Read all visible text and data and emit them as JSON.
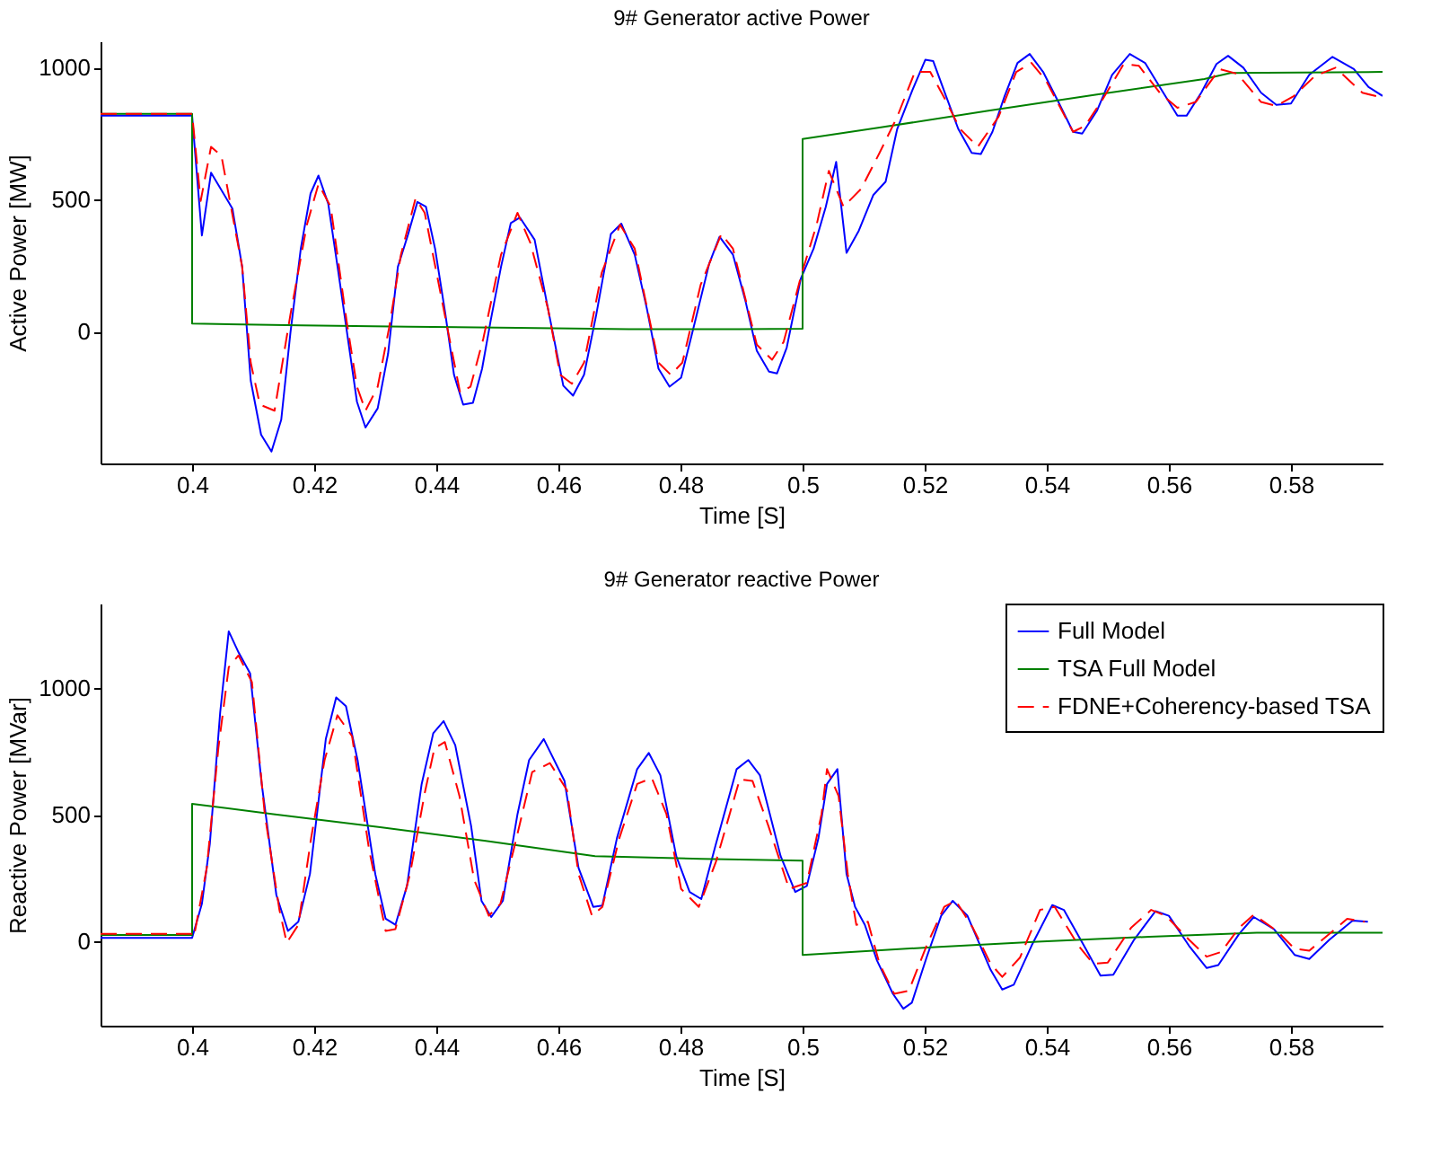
{
  "chart_data": [
    {
      "type": "line",
      "title": "9# Generator active Power",
      "xlabel": "Time [S]",
      "ylabel": "Active Power [MW]",
      "xlim": [
        0.385,
        0.595
      ],
      "ylim": [
        -500,
        1100
      ],
      "xticks": [
        0.4,
        0.42,
        0.44,
        0.46,
        0.48,
        0.5,
        0.52,
        0.54,
        0.56,
        0.58
      ],
      "yticks": [
        0,
        500,
        1000
      ],
      "grid": false,
      "legend": false,
      "series": [
        {
          "color": "#0000ff",
          "line_style": "solid",
          "x": [
            0.385,
            0.4,
            0.4016,
            0.4031,
            0.4066,
            0.4082,
            0.4096,
            0.4113,
            0.413,
            0.4146,
            0.4161,
            0.4178,
            0.4194,
            0.4207,
            0.4223,
            0.4239,
            0.427,
            0.4284,
            0.4304,
            0.4321,
            0.4337,
            0.4354,
            0.4369,
            0.4383,
            0.4398,
            0.4415,
            0.4429,
            0.4444,
            0.446,
            0.4475,
            0.4489,
            0.4506,
            0.4522,
            0.4537,
            0.4561,
            0.4583,
            0.4608,
            0.4624,
            0.4642,
            0.4662,
            0.4686,
            0.4703,
            0.4725,
            0.4745,
            0.4764,
            0.4782,
            0.4801,
            0.4823,
            0.4847,
            0.4864,
            0.4886,
            0.4906,
            0.4925,
            0.4945,
            0.4958,
            0.4974,
            0.4997,
            0.5018,
            0.5038,
            0.5055,
            0.5072,
            0.5092,
            0.5116,
            0.5136,
            0.5155,
            0.518,
            0.5201,
            0.5214,
            0.5233,
            0.5255,
            0.5277,
            0.5292,
            0.5311,
            0.5331,
            0.5352,
            0.5372,
            0.5394,
            0.5419,
            0.5443,
            0.5458,
            0.5482,
            0.5507,
            0.5536,
            0.5561,
            0.5585,
            0.5614,
            0.5629,
            0.5653,
            0.5678,
            0.5697,
            0.5722,
            0.5751,
            0.5776,
            0.58,
            0.583,
            0.5868,
            0.5903,
            0.5927,
            0.595
          ],
          "values": [
            818,
            818,
            364,
            602,
            466,
            245,
            -186,
            -391,
            -455,
            -334,
            -5,
            314,
            523,
            591,
            484,
            234,
            -266,
            -364,
            -291,
            -84,
            245,
            370,
            491,
            473,
            314,
            64,
            -164,
            -277,
            -270,
            -141,
            41,
            245,
            411,
            432,
            348,
            86,
            -205,
            -243,
            -164,
            64,
            370,
            409,
            291,
            86,
            -141,
            -209,
            -175,
            30,
            257,
            359,
            291,
            120,
            -73,
            -152,
            -159,
            -61,
            200,
            314,
            473,
            643,
            298,
            382,
            518,
            568,
            768,
            916,
            1030,
            1025,
            905,
            768,
            677,
            673,
            757,
            893,
            1018,
            1052,
            984,
            870,
            757,
            750,
            836,
            973,
            1052,
            1018,
            927,
            818,
            818,
            905,
            1014,
            1045,
            1000,
            905,
            859,
            864,
            973,
            1041,
            995,
            927,
            893
          ]
        },
        {
          "color": "#008000",
          "line_style": "solid",
          "x": [
            0.385,
            0.4,
            0.4,
            0.4178,
            0.4354,
            0.4532,
            0.4715,
            0.4896,
            0.5,
            0.5,
            0.5126,
            0.5302,
            0.5482,
            0.5658,
            0.5701,
            0.595
          ],
          "values": [
            825,
            825,
            30,
            23,
            18,
            14,
            9,
            9,
            11,
            730,
            773,
            836,
            898,
            957,
            980,
            984
          ]
        },
        {
          "color": "#ff0000",
          "line_style": "dashed",
          "x": [
            0.385,
            0.4,
            0.4014,
            0.4031,
            0.4048,
            0.4082,
            0.4096,
            0.4111,
            0.4135,
            0.4161,
            0.4188,
            0.4207,
            0.4227,
            0.4253,
            0.427,
            0.4284,
            0.4304,
            0.4323,
            0.4342,
            0.4366,
            0.4381,
            0.441,
            0.4439,
            0.4456,
            0.4477,
            0.4506,
            0.4533,
            0.4554,
            0.4583,
            0.4603,
            0.4622,
            0.4642,
            0.4671,
            0.4701,
            0.4725,
            0.4764,
            0.4784,
            0.4803,
            0.4833,
            0.4867,
            0.4886,
            0.4925,
            0.495,
            0.4969,
            0.4999,
            0.5023,
            0.5043,
            0.5067,
            0.5096,
            0.5126,
            0.5155,
            0.5184,
            0.5209,
            0.5233,
            0.5258,
            0.5287,
            0.5321,
            0.535,
            0.5375,
            0.5399,
            0.5443,
            0.5463,
            0.5492,
            0.5526,
            0.5551,
            0.5585,
            0.5614,
            0.5644,
            0.5683,
            0.5712,
            0.5751,
            0.5776,
            0.5805,
            0.5839,
            0.5873,
            0.5917,
            0.595
          ],
          "values": [
            825,
            825,
            495,
            700,
            666,
            245,
            -118,
            -277,
            -300,
            64,
            405,
            559,
            473,
            41,
            -209,
            -300,
            -209,
            18,
            291,
            505,
            450,
            109,
            -232,
            -209,
            -27,
            291,
            450,
            336,
            86,
            -164,
            -198,
            -118,
            223,
            405,
            314,
            -118,
            -164,
            -118,
            177,
            370,
            314,
            -50,
            -107,
            -39,
            223,
            405,
            609,
            473,
            541,
            677,
            814,
            984,
            984,
            882,
            768,
            700,
            814,
            984,
            1018,
            950,
            757,
            780,
            882,
            1014,
            1007,
            905,
            848,
            870,
            995,
            977,
            870,
            855,
            893,
            968,
            1000,
            905,
            886
          ]
        }
      ]
    },
    {
      "type": "line",
      "title": "9# Generator reactive Power",
      "xlabel": "Time [S]",
      "ylabel": "Reactive Power [MVar]",
      "xlim": [
        0.385,
        0.595
      ],
      "ylim": [
        -335,
        1335
      ],
      "xticks": [
        0.4,
        0.42,
        0.44,
        0.46,
        0.48,
        0.5,
        0.52,
        0.54,
        0.56,
        0.58
      ],
      "yticks": [
        0,
        500,
        1000
      ],
      "grid": false,
      "legend": "top right",
      "series": [
        {
          "name": "Full Model",
          "color": "#0000ff",
          "line_style": "solid",
          "x": [
            0.385,
            0.4,
            0.4016,
            0.4029,
            0.4046,
            0.406,
            0.4076,
            0.4095,
            0.4114,
            0.4138,
            0.4157,
            0.4174,
            0.4193,
            0.4219,
            0.4236,
            0.4252,
            0.4271,
            0.43,
            0.4317,
            0.4333,
            0.4352,
            0.4376,
            0.4395,
            0.4412,
            0.4431,
            0.4457,
            0.4474,
            0.449,
            0.4509,
            0.4533,
            0.4552,
            0.4576,
            0.461,
            0.4633,
            0.4657,
            0.4672,
            0.4696,
            0.4729,
            0.4748,
            0.4767,
            0.4793,
            0.4815,
            0.4834,
            0.4858,
            0.4892,
            0.4911,
            0.493,
            0.4964,
            0.4988,
            0.5007,
            0.5026,
            0.504,
            0.5057,
            0.5072,
            0.5086,
            0.5102,
            0.5122,
            0.5148,
            0.5165,
            0.5179,
            0.5203,
            0.5227,
            0.5246,
            0.527,
            0.5308,
            0.5327,
            0.5346,
            0.5375,
            0.5409,
            0.5428,
            0.5461,
            0.5488,
            0.5509,
            0.5543,
            0.5578,
            0.56,
            0.5633,
            0.5662,
            0.5681,
            0.5715,
            0.5739,
            0.5772,
            0.5806,
            0.583,
            0.5863,
            0.5901,
            0.5926
          ],
          "values": [
            12,
            12,
            147,
            384,
            905,
            1225,
            1142,
            1059,
            621,
            182,
            40,
            76,
            265,
            799,
            964,
            929,
            716,
            265,
            88,
            64,
            218,
            621,
            822,
            870,
            775,
            455,
            159,
            95,
            159,
            502,
            716,
            799,
            633,
            289,
            135,
            140,
            408,
            680,
            744,
            656,
            336,
            194,
            166,
            384,
            680,
            716,
            656,
            336,
            194,
            218,
            408,
            621,
            680,
            265,
            135,
            64,
            -78,
            -209,
            -268,
            -244,
            -66,
            100,
            159,
            100,
            -114,
            -192,
            -173,
            -19,
            142,
            123,
            -19,
            -137,
            -133,
            5,
            118,
            100,
            -19,
            -107,
            -95,
            28,
            95,
            47,
            -55,
            -71,
            5,
            81,
            76
          ]
        },
        {
          "name": "TSA Full Model",
          "color": "#008000",
          "line_style": "solid",
          "x": [
            0.385,
            0.4,
            0.4,
            0.4133,
            0.4308,
            0.4481,
            0.466,
            0.4834,
            0.5,
            0.5,
            0.5217,
            0.5392,
            0.5568,
            0.5744,
            0.595
          ],
          "values": [
            24,
            24,
            543,
            502,
            450,
            396,
            336,
            325,
            318,
            -55,
            -24,
            -2,
            17,
            33,
            33
          ]
        },
        {
          "name": "FDNE+Coherency-based TSA",
          "color": "#ff0000",
          "line_style": "dashed",
          "x": [
            0.385,
            0.4,
            0.4003,
            0.4024,
            0.4043,
            0.406,
            0.4076,
            0.4098,
            0.4119,
            0.4143,
            0.4155,
            0.4174,
            0.4195,
            0.4217,
            0.4238,
            0.4262,
            0.429,
            0.4317,
            0.4333,
            0.4357,
            0.4381,
            0.4397,
            0.4414,
            0.4438,
            0.4462,
            0.4486,
            0.4505,
            0.4529,
            0.4557,
            0.4586,
            0.4614,
            0.4633,
            0.4655,
            0.4672,
            0.47,
            0.4729,
            0.4753,
            0.4777,
            0.4801,
            0.483,
            0.4858,
            0.4897,
            0.4918,
            0.4944,
            0.4978,
            0.5007,
            0.5031,
            0.504,
            0.5059,
            0.5074,
            0.5088,
            0.5107,
            0.5126,
            0.515,
            0.5174,
            0.5203,
            0.5232,
            0.5251,
            0.5279,
            0.5308,
            0.5327,
            0.5356,
            0.5389,
            0.5413,
            0.5452,
            0.5476,
            0.55,
            0.5538,
            0.5571,
            0.5595,
            0.5633,
            0.5662,
            0.5686,
            0.5715,
            0.5739,
            0.5777,
            0.5806,
            0.583,
            0.5863,
            0.5892,
            0.5921
          ],
          "values": [
            28,
            28,
            17,
            289,
            763,
            1083,
            1130,
            1024,
            502,
            123,
            -7,
            64,
            408,
            716,
            893,
            810,
            360,
            40,
            47,
            265,
            585,
            763,
            787,
            573,
            242,
            100,
            147,
            384,
            668,
            704,
            597,
            265,
            100,
            135,
            408,
            621,
            645,
            502,
            206,
            135,
            313,
            640,
            633,
            455,
            206,
            230,
            502,
            680,
            573,
            265,
            64,
            76,
            -90,
            -209,
            -197,
            -19,
            135,
            159,
            52,
            -90,
            -142,
            -66,
            123,
            135,
            -19,
            -90,
            -85,
            52,
            123,
            100,
            5,
            -62,
            -43,
            52,
            104,
            40,
            -31,
            -38,
            28,
            88,
            76
          ]
        }
      ]
    }
  ]
}
